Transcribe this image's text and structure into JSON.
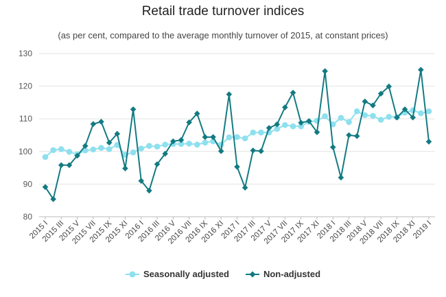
{
  "chart_data": {
    "type": "line",
    "title": "Retail trade turnover indices",
    "subtitle": "(as per cent, compared to the average monthly turnover of 2015, at constant prices)",
    "ylim": [
      80,
      130
    ],
    "y_ticks": [
      "80",
      "90",
      "100",
      "110",
      "120",
      "130"
    ],
    "grid": "horizontal",
    "legend_position": "bottom-center",
    "x": [
      "2015 I",
      "2015 II",
      "2015 III",
      "2015 IV",
      "2015 V",
      "2015 VI",
      "2015 VII",
      "2015 VIII",
      "2015 IX",
      "2015 X",
      "2015 XI",
      "2015 XII",
      "2016 I",
      "2016 II",
      "2016 III",
      "2016 IV",
      "2016 V",
      "2016 VI",
      "2016 VII",
      "2016 VIII",
      "2016 IX",
      "2016 X",
      "2016 XI",
      "2016 XII",
      "2017 I",
      "2017 II",
      "2017 III",
      "2017 IV",
      "2017 V",
      "2017 VI",
      "2017 VII",
      "2017 VIII",
      "2017 IX",
      "2017 X",
      "2017 XI",
      "2017 XII",
      "2018 I",
      "2018 II",
      "2018 III",
      "2018 IV",
      "2018 V",
      "2018 VI",
      "2018 VII",
      "2018 VIII",
      "2018 IX",
      "2018 X",
      "2018 XI",
      "2018 XII",
      "2019 I"
    ],
    "x_tick_labels": [
      "2015 I",
      "2015 III",
      "2015 V",
      "2015 VII",
      "2015 IX",
      "2015 XI",
      "2016 I",
      "2016 III",
      "2016 V",
      "2016 VII",
      "2016 IX",
      "2016 XI",
      "2017 I",
      "2017 III",
      "2017 V",
      "2017 VII",
      "2017 IX",
      "2017 XI",
      "2018 I",
      "2018 III",
      "2018 V",
      "2018 VII",
      "2018 IX",
      "2018 XI",
      "2019 I"
    ],
    "series": [
      {
        "name": "Seasonally adjusted",
        "color": "#8ee0ee",
        "marker": "circle",
        "values": [
          98.3,
          100.4,
          100.7,
          99.9,
          99.1,
          100.3,
          100.6,
          101.1,
          100.7,
          102.0,
          99.0,
          99.7,
          100.9,
          101.7,
          101.5,
          102.1,
          102.3,
          102.3,
          102.4,
          102.1,
          102.7,
          103.1,
          102.1,
          104.3,
          104.4,
          104.0,
          105.8,
          105.8,
          105.8,
          106.9,
          108.1,
          107.7,
          107.7,
          109.1,
          109.4,
          110.8,
          108.3,
          110.3,
          109.0,
          112.3,
          111.1,
          110.9,
          109.7,
          110.6,
          110.5,
          111.9,
          112.6,
          111.7,
          112.3
        ]
      },
      {
        "name": "Non-adjusted",
        "color": "#137a82",
        "marker": "diamond",
        "values": [
          89.1,
          85.4,
          95.8,
          95.8,
          98.7,
          101.7,
          108.4,
          109.1,
          102.7,
          105.4,
          94.8,
          112.9,
          91.0,
          88.0,
          96.1,
          99.3,
          103.1,
          103.5,
          108.9,
          111.6,
          104.4,
          104.4,
          100.1,
          117.5,
          95.3,
          88.9,
          100.3,
          100.1,
          107.2,
          108.3,
          113.5,
          118.0,
          108.8,
          109.3,
          105.9,
          124.6,
          101.3,
          92.0,
          105.0,
          104.7,
          115.3,
          114.1,
          117.7,
          119.9,
          110.4,
          112.9,
          110.4,
          125.0,
          103.0
        ]
      }
    ]
  }
}
